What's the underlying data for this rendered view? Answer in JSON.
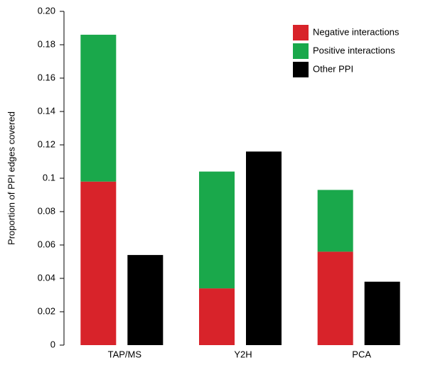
{
  "chart_data": {
    "type": "stacked-grouped-bar",
    "y_label": "Proportion of PPI edges covered",
    "categories": [
      "TAP/MS",
      "Y2H",
      "PCA"
    ],
    "series": [
      {
        "name": "Negative interactions",
        "color": "#d8232a",
        "stack": 0,
        "values": [
          0.098,
          0.034,
          0.056
        ]
      },
      {
        "name": "Positive interactions",
        "color": "#1aa84b",
        "stack": 0,
        "values": [
          0.088,
          0.07,
          0.037
        ]
      },
      {
        "name": "Other PPI",
        "color": "#000000",
        "stack": 1,
        "values": [
          0.054,
          0.116,
          0.038
        ]
      }
    ],
    "ylim": [
      0,
      0.2
    ],
    "yticks": [
      0,
      0.02,
      0.04,
      0.06,
      0.08,
      0.1,
      0.12,
      0.14,
      0.16,
      0.18,
      {
        "value": 0.2,
        "label": "0.20"
      }
    ],
    "legend": "top-right"
  }
}
